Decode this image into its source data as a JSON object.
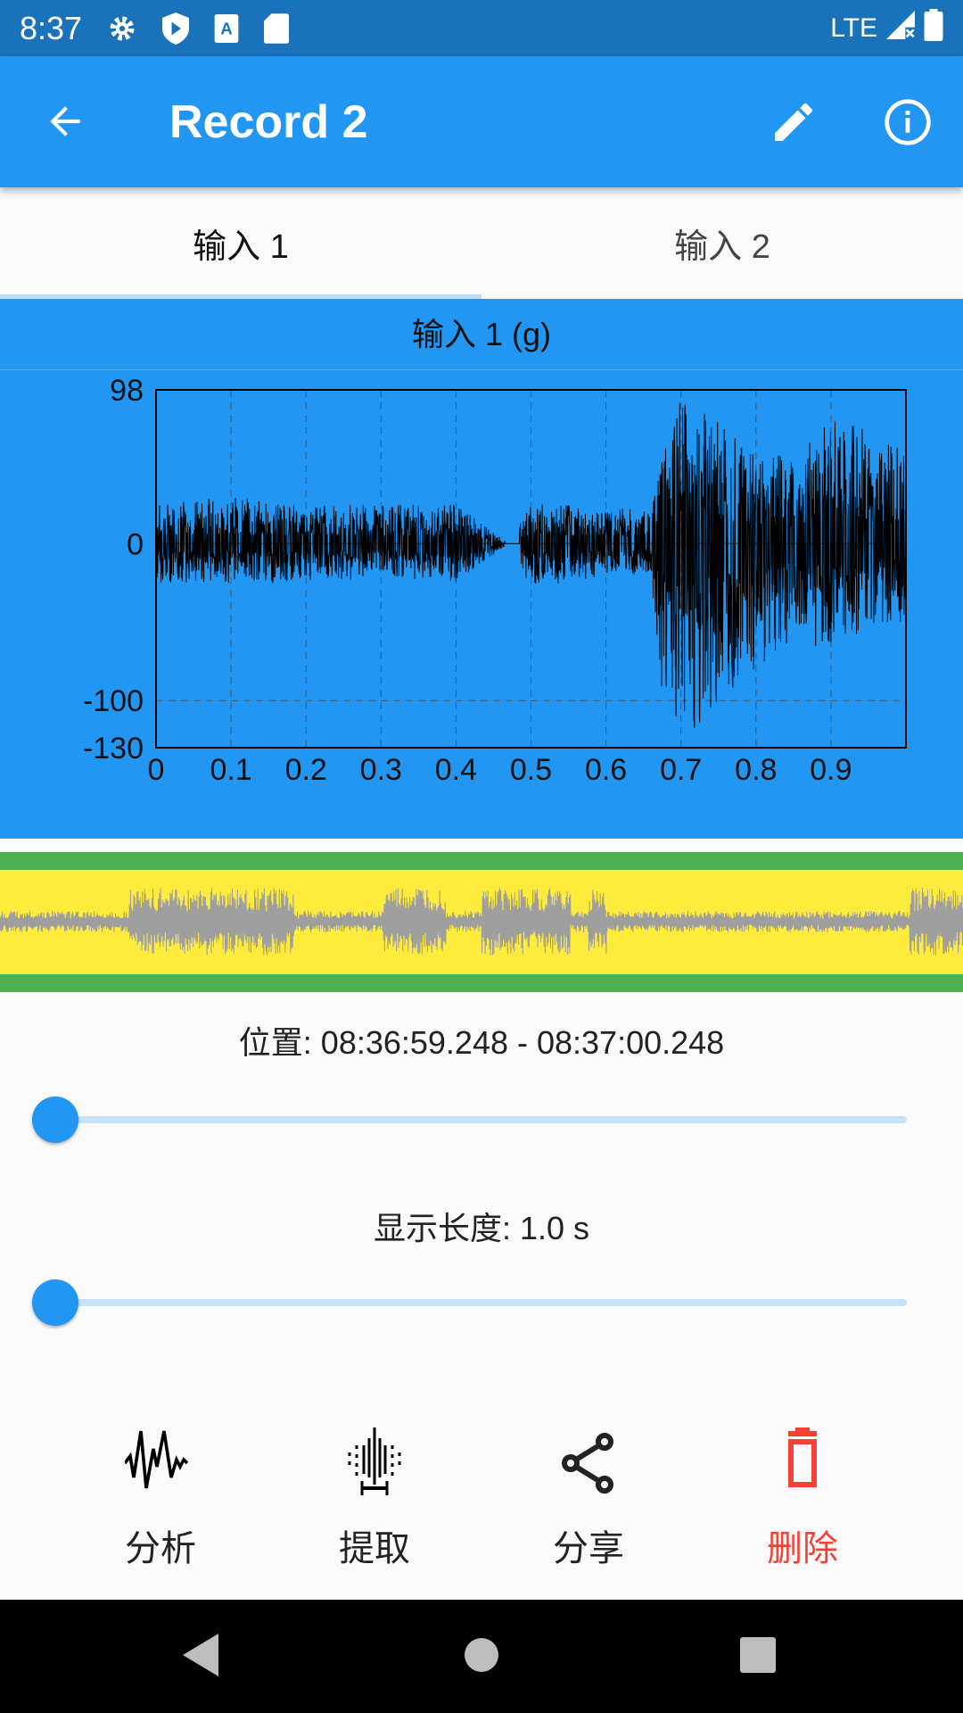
{
  "status_bar": {
    "time": "8:37",
    "network": "LTE",
    "icons": [
      "gear-icon",
      "play-protect-icon",
      "a-text-icon",
      "sd-card-icon",
      "signal-icon",
      "battery-icon"
    ]
  },
  "app_bar": {
    "title": "Record 2",
    "back_icon": "arrow-left-icon",
    "edit_icon": "pencil-icon",
    "info_icon": "info-icon"
  },
  "tabs": [
    {
      "label": "输入 1",
      "active": true
    },
    {
      "label": "输入 2",
      "active": false
    }
  ],
  "chart_data": {
    "type": "line",
    "title": "输入 1 (g)",
    "xlim": [
      0,
      1.0
    ],
    "ylim": [
      -130,
      98
    ],
    "x_ticks": [
      "0",
      "0.1",
      "0.2",
      "0.3",
      "0.4",
      "0.5",
      "0.6",
      "0.7",
      "0.8",
      "0.9"
    ],
    "y_ticks": [
      "98",
      "0",
      "-100",
      "-130"
    ],
    "grid": true,
    "line_color": "#000000",
    "background": "#2196f3",
    "envelope": [
      {
        "x": 0.0,
        "max": 25,
        "min": -25
      },
      {
        "x": 0.1,
        "max": 30,
        "min": -25
      },
      {
        "x": 0.2,
        "max": 25,
        "min": -25
      },
      {
        "x": 0.3,
        "max": 25,
        "min": -22
      },
      {
        "x": 0.4,
        "max": 25,
        "min": -25
      },
      {
        "x": 0.47,
        "max": 0,
        "min": 0
      },
      {
        "x": 0.5,
        "max": 25,
        "min": -30
      },
      {
        "x": 0.6,
        "max": 25,
        "min": -20
      },
      {
        "x": 0.66,
        "max": 20,
        "min": -20
      },
      {
        "x": 0.68,
        "max": 70,
        "min": -120
      },
      {
        "x": 0.7,
        "max": 95,
        "min": -130
      },
      {
        "x": 0.75,
        "max": 80,
        "min": -100
      },
      {
        "x": 0.8,
        "max": 60,
        "min": -80
      },
      {
        "x": 0.85,
        "max": 55,
        "min": -60
      },
      {
        "x": 0.9,
        "max": 80,
        "min": -70
      },
      {
        "x": 0.97,
        "max": 70,
        "min": -50
      },
      {
        "x": 1.0,
        "max": 60,
        "min": -50
      }
    ]
  },
  "overview": {
    "background": "#ffeb3b",
    "border": "#4caf50",
    "wave_color": "#9e9e9e"
  },
  "position": {
    "label": "位置: 08:36:59.248 -  08:37:00.248",
    "slider_value": 0
  },
  "display_length": {
    "label": "显示长度: 1.0 s",
    "slider_value": 0
  },
  "actions": [
    {
      "label": "分析",
      "icon": "waveform-icon"
    },
    {
      "label": "提取",
      "icon": "extract-icon"
    },
    {
      "label": "分享",
      "icon": "share-icon"
    },
    {
      "label": "删除",
      "icon": "trash-icon",
      "color": "#f44336"
    }
  ],
  "nav": {
    "icons": [
      "back-triangle-icon",
      "home-circle-icon",
      "recents-square-icon"
    ]
  }
}
